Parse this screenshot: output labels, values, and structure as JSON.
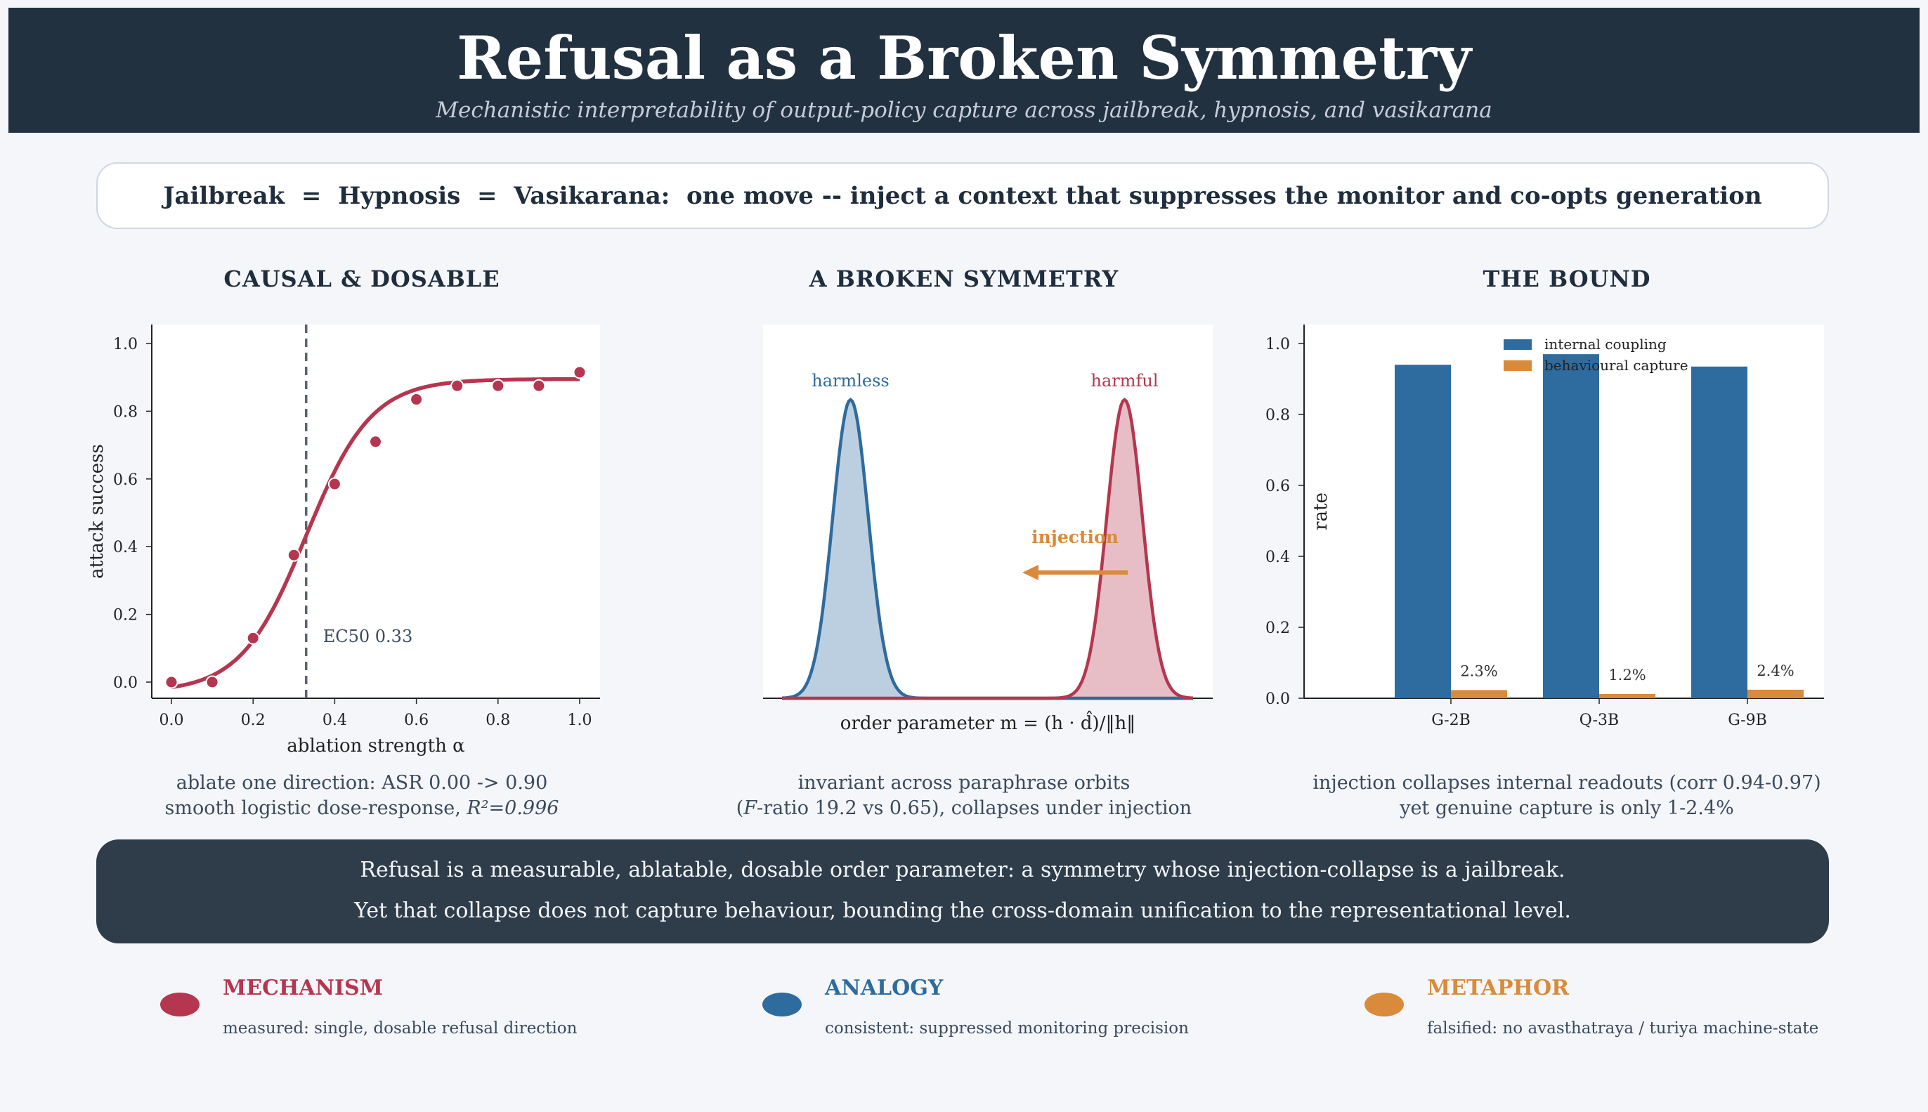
{
  "header": {
    "title": "Refusal as a Broken Symmetry",
    "subtitle": "Mechanistic interpretability of output-policy capture across jailbreak, hypnosis, and vasikarana"
  },
  "banner": "Jailbreak  =  Hypnosis  =  Vasikarana:  one move -- inject a context that suppresses the monitor and co-opts generation",
  "panels": [
    {
      "title": "CAUSAL & DOSABLE",
      "caption_line1": "ablate one direction: ASR 0.00 -> 0.90",
      "caption_line2_prefix": "smooth logistic dose-response, ",
      "caption_line2_math": "R²=0.996"
    },
    {
      "title": "A BROKEN SYMMETRY",
      "caption_line1": "invariant across paraphrase orbits",
      "caption_line2_prefix": "(",
      "caption_line2_math": "F",
      "caption_line2_suffix": "-ratio 19.2 vs 0.65), collapses under injection"
    },
    {
      "title": "THE BOUND",
      "caption_line1": "injection collapses internal readouts (corr 0.94-0.97)",
      "caption_line2": "yet genuine capture is only 1-2.4%"
    }
  ],
  "footer": {
    "line1": "Refusal is a measurable, ablatable, dosable order parameter: a symmetry whose injection-collapse is a jailbreak.",
    "line2": "Yet that collapse does not capture behaviour, bounding the cross-domain unification to the representational level."
  },
  "legend": [
    {
      "head": "MECHANISM",
      "desc": "measured: single, dosable refusal direction",
      "color": "#b5364f"
    },
    {
      "head": "ANALOGY",
      "desc": "consistent: suppressed monitoring precision",
      "color": "#2e6b9e"
    },
    {
      "head": "METAPHOR",
      "desc": "falsified: no avasthatraya / turiya machine-state",
      "color": "#d98a3a"
    }
  ],
  "colors": {
    "red": "#b5364f",
    "blue": "#2e6b9e",
    "orange": "#d98a3a",
    "navy": "#223140"
  },
  "chart_data": [
    {
      "type": "scatter",
      "xlabel": "ablation strength α",
      "ylabel": "attack success",
      "xlim": [
        0.0,
        1.0
      ],
      "ylim": [
        0.0,
        1.0
      ],
      "xticks": [
        "0.0",
        "0.2",
        "0.4",
        "0.6",
        "0.8",
        "1.0"
      ],
      "yticks": [
        "0.0",
        "0.2",
        "0.4",
        "0.6",
        "0.8",
        "1.0"
      ],
      "points": {
        "x": [
          0.0,
          0.1,
          0.2,
          0.3,
          0.4,
          0.5,
          0.6,
          0.7,
          0.8,
          0.9,
          1.0
        ],
        "y": [
          0.0,
          0.0,
          0.13,
          0.375,
          0.585,
          0.71,
          0.835,
          0.875,
          0.875,
          0.875,
          0.915
        ]
      },
      "fit": {
        "type": "logistic",
        "L": 0.895,
        "x0": 0.33,
        "k": 12.5,
        "offset": -0.03
      },
      "ec50": 0.33,
      "annotation": "EC50 0.33",
      "grid": false
    },
    {
      "type": "area",
      "xlabel": "order parameter m = (h · d̂)/‖h‖",
      "distributions": [
        {
          "name": "harmless",
          "center": -1.0,
          "width": 0.13,
          "color": "#2e6b9e"
        },
        {
          "name": "harmful",
          "center": 1.0,
          "width": 0.13,
          "color": "#b5364f"
        }
      ],
      "annotation": "injection",
      "arrow_direction": "left"
    },
    {
      "type": "bar",
      "categories": [
        "G-2B",
        "Q-3B",
        "G-9B"
      ],
      "ylabel": "rate",
      "ylim": [
        0.0,
        1.0
      ],
      "yticks": [
        "0.0",
        "0.2",
        "0.4",
        "0.6",
        "0.8",
        "1.0"
      ],
      "series": [
        {
          "name": "internal coupling",
          "values": [
            0.94,
            0.97,
            0.935
          ],
          "color": "#2e6b9e"
        },
        {
          "name": "behavioural capture",
          "values": [
            0.023,
            0.012,
            0.024
          ],
          "color": "#d98a3a"
        }
      ],
      "data_labels": [
        "2.3%",
        "1.2%",
        "2.4%"
      ],
      "legend_position": "top-center",
      "grid": false
    }
  ]
}
